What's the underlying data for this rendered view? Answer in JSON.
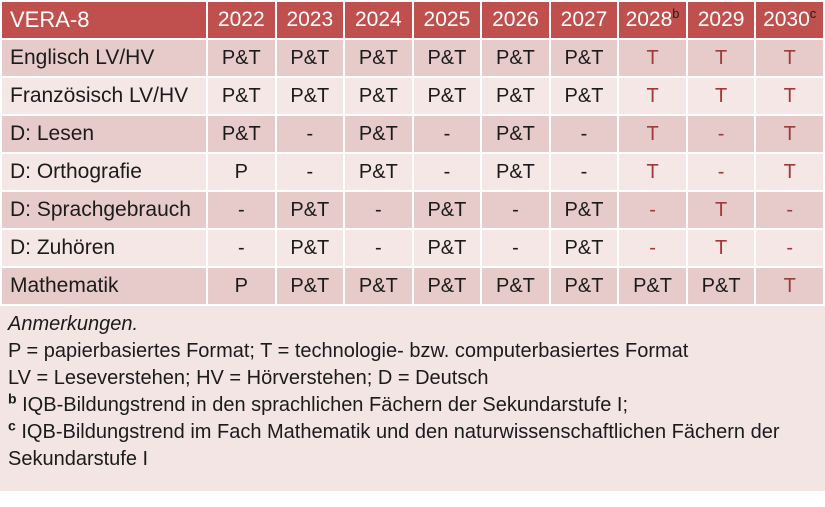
{
  "colors": {
    "header_bg": "#bf504d",
    "header_text": "#ffffff",
    "band_dark": "#e6cbca",
    "band_light": "#f4e7e6",
    "notes_bg": "#f2e5e4",
    "accent_text": "#9e3a39"
  },
  "table": {
    "header": [
      {
        "text": "VERA-8",
        "sup": ""
      },
      {
        "text": "2022",
        "sup": ""
      },
      {
        "text": "2023",
        "sup": ""
      },
      {
        "text": "2024",
        "sup": ""
      },
      {
        "text": "2025",
        "sup": ""
      },
      {
        "text": "2026",
        "sup": ""
      },
      {
        "text": "2027",
        "sup": ""
      },
      {
        "text": "2028",
        "sup": "b"
      },
      {
        "text": "2029",
        "sup": ""
      },
      {
        "text": "2030",
        "sup": "c"
      }
    ],
    "rows": [
      {
        "label": "Englisch LV/HV",
        "cells": [
          {
            "text": "P&T",
            "red": false
          },
          {
            "text": "P&T",
            "red": false
          },
          {
            "text": "P&T",
            "red": false
          },
          {
            "text": "P&T",
            "red": false
          },
          {
            "text": "P&T",
            "red": false
          },
          {
            "text": "P&T",
            "red": false
          },
          {
            "text": "T",
            "red": true
          },
          {
            "text": "T",
            "red": true
          },
          {
            "text": "T",
            "red": true
          }
        ]
      },
      {
        "label": "Französisch LV/HV",
        "cells": [
          {
            "text": "P&T",
            "red": false
          },
          {
            "text": "P&T",
            "red": false
          },
          {
            "text": "P&T",
            "red": false
          },
          {
            "text": "P&T",
            "red": false
          },
          {
            "text": "P&T",
            "red": false
          },
          {
            "text": "P&T",
            "red": false
          },
          {
            "text": "T",
            "red": true
          },
          {
            "text": "T",
            "red": true
          },
          {
            "text": "T",
            "red": true
          }
        ]
      },
      {
        "label": "D: Lesen",
        "cells": [
          {
            "text": "P&T",
            "red": false
          },
          {
            "text": "-",
            "red": false
          },
          {
            "text": "P&T",
            "red": false
          },
          {
            "text": "-",
            "red": false
          },
          {
            "text": "P&T",
            "red": false
          },
          {
            "text": "-",
            "red": false
          },
          {
            "text": "T",
            "red": true
          },
          {
            "text": "-",
            "red": true
          },
          {
            "text": "T",
            "red": true
          }
        ]
      },
      {
        "label": "D: Orthografie",
        "cells": [
          {
            "text": "P",
            "red": false
          },
          {
            "text": "-",
            "red": false
          },
          {
            "text": "P&T",
            "red": false
          },
          {
            "text": "-",
            "red": false
          },
          {
            "text": "P&T",
            "red": false
          },
          {
            "text": "-",
            "red": false
          },
          {
            "text": "T",
            "red": true
          },
          {
            "text": "-",
            "red": true
          },
          {
            "text": "T",
            "red": true
          }
        ]
      },
      {
        "label": "D: Sprachgebrauch",
        "cells": [
          {
            "text": "-",
            "red": false
          },
          {
            "text": "P&T",
            "red": false
          },
          {
            "text": "-",
            "red": false
          },
          {
            "text": "P&T",
            "red": false
          },
          {
            "text": "-",
            "red": false
          },
          {
            "text": "P&T",
            "red": false
          },
          {
            "text": "-",
            "red": true
          },
          {
            "text": "T",
            "red": true
          },
          {
            "text": "-",
            "red": true
          }
        ]
      },
      {
        "label": "D: Zuhören",
        "cells": [
          {
            "text": "-",
            "red": false
          },
          {
            "text": "P&T",
            "red": false
          },
          {
            "text": "-",
            "red": false
          },
          {
            "text": "P&T",
            "red": false
          },
          {
            "text": "-",
            "red": false
          },
          {
            "text": "P&T",
            "red": false
          },
          {
            "text": "-",
            "red": true
          },
          {
            "text": "T",
            "red": true
          },
          {
            "text": "-",
            "red": true
          }
        ]
      },
      {
        "label": "Mathematik",
        "cells": [
          {
            "text": "P",
            "red": false
          },
          {
            "text": "P&T",
            "red": false
          },
          {
            "text": "P&T",
            "red": false
          },
          {
            "text": "P&T",
            "red": false
          },
          {
            "text": "P&T",
            "red": false
          },
          {
            "text": "P&T",
            "red": false
          },
          {
            "text": "P&T",
            "red": false
          },
          {
            "text": "P&T",
            "red": false
          },
          {
            "text": "T",
            "red": true
          }
        ]
      }
    ]
  },
  "notes": {
    "title": "Anmerkungen.",
    "lines": [
      {
        "sup": "",
        "text": "P = papierbasiertes Format; T = technologie- bzw. computerbasiertes Format"
      },
      {
        "sup": "",
        "text": "LV = Leseverstehen; HV = Hörverstehen; D = Deutsch"
      },
      {
        "sup": "b",
        "text": "IQB-Bildungstrend in den sprachlichen Fächern der Sekundarstufe I;"
      },
      {
        "sup": "c",
        "text": "IQB-Bildungstrend im Fach Mathematik und den naturwissenschaftlichen Fächern der Sekundarstufe I"
      }
    ]
  }
}
